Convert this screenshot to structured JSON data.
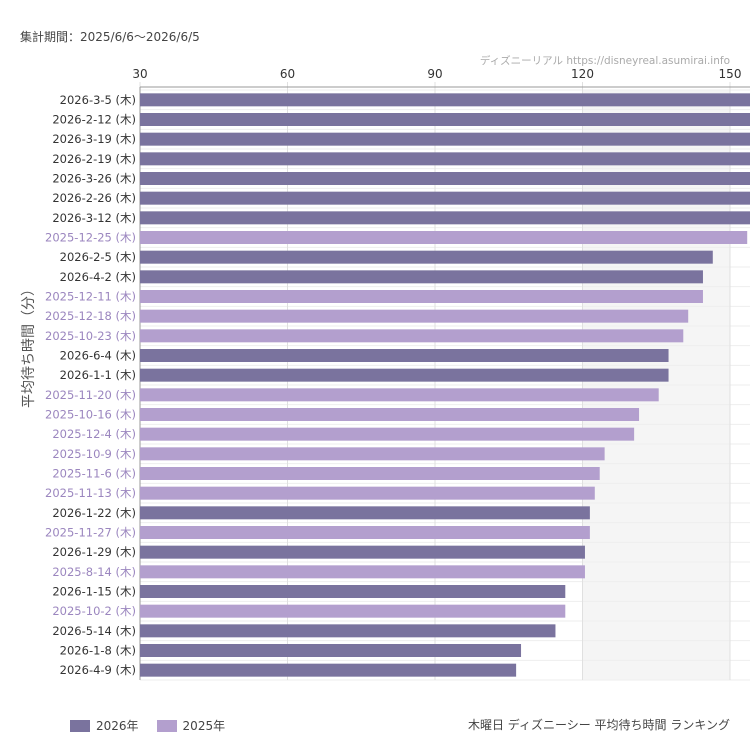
{
  "header": {
    "period": "集計期間：2025/6/6～2026/6/5",
    "source": "ディズニーリアル https://disneyreal.asumirai.info"
  },
  "footer": {
    "title": "木曜日 ディズニーシー 平均待ち時間 ランキング"
  },
  "colors": {
    "2026": "#7a739e",
    "2025": "#b39fce",
    "label_2026": "#333333",
    "label_2025": "#9b86bf",
    "plot_band": "#f5f5f5"
  },
  "chart_data": {
    "type": "bar",
    "orientation": "horizontal",
    "ylabel": "平均待ち時間（分）",
    "xlim": [
      30,
      155
    ],
    "xticks": [
      30,
      60,
      90,
      120,
      150
    ],
    "legend_placement": "bottom-left",
    "series": [
      {
        "name": "2026年",
        "key": "2026"
      },
      {
        "name": "2025年",
        "key": "2025"
      }
    ],
    "bars": [
      {
        "label": "2026-3-5 (木)",
        "value": 155,
        "year": "2026"
      },
      {
        "label": "2026-2-12 (木)",
        "value": 155,
        "year": "2026"
      },
      {
        "label": "2026-3-19 (木)",
        "value": 155,
        "year": "2026"
      },
      {
        "label": "2026-2-19 (木)",
        "value": 155,
        "year": "2026"
      },
      {
        "label": "2026-3-26 (木)",
        "value": 155,
        "year": "2026"
      },
      {
        "label": "2026-2-26 (木)",
        "value": 155,
        "year": "2026"
      },
      {
        "label": "2026-3-12 (木)",
        "value": 155,
        "year": "2026"
      },
      {
        "label": "2025-12-25 (木)",
        "value": 153.5,
        "year": "2025"
      },
      {
        "label": "2026-2-5 (木)",
        "value": 146.5,
        "year": "2026"
      },
      {
        "label": "2026-4-2 (木)",
        "value": 144.5,
        "year": "2026"
      },
      {
        "label": "2025-12-11 (木)",
        "value": 144.5,
        "year": "2025"
      },
      {
        "label": "2025-12-18 (木)",
        "value": 141.5,
        "year": "2025"
      },
      {
        "label": "2025-10-23 (木)",
        "value": 140.5,
        "year": "2025"
      },
      {
        "label": "2026-6-4 (木)",
        "value": 137.5,
        "year": "2026"
      },
      {
        "label": "2026-1-1 (木)",
        "value": 137.5,
        "year": "2026"
      },
      {
        "label": "2025-11-20 (木)",
        "value": 135.5,
        "year": "2025"
      },
      {
        "label": "2025-10-16 (木)",
        "value": 131.5,
        "year": "2025"
      },
      {
        "label": "2025-12-4 (木)",
        "value": 130.5,
        "year": "2025"
      },
      {
        "label": "2025-10-9 (木)",
        "value": 124.5,
        "year": "2025"
      },
      {
        "label": "2025-11-6 (木)",
        "value": 123.5,
        "year": "2025"
      },
      {
        "label": "2025-11-13 (木)",
        "value": 122.5,
        "year": "2025"
      },
      {
        "label": "2026-1-22 (木)",
        "value": 121.5,
        "year": "2026"
      },
      {
        "label": "2025-11-27 (木)",
        "value": 121.5,
        "year": "2025"
      },
      {
        "label": "2026-1-29 (木)",
        "value": 120.5,
        "year": "2026"
      },
      {
        "label": "2025-8-14 (木)",
        "value": 120.5,
        "year": "2025"
      },
      {
        "label": "2026-1-15 (木)",
        "value": 116.5,
        "year": "2026"
      },
      {
        "label": "2025-10-2 (木)",
        "value": 116.5,
        "year": "2025"
      },
      {
        "label": "2026-5-14 (木)",
        "value": 114.5,
        "year": "2026"
      },
      {
        "label": "2026-1-8 (木)",
        "value": 107.5,
        "year": "2026"
      },
      {
        "label": "2026-4-9 (木)",
        "value": 106.5,
        "year": "2026"
      }
    ]
  }
}
